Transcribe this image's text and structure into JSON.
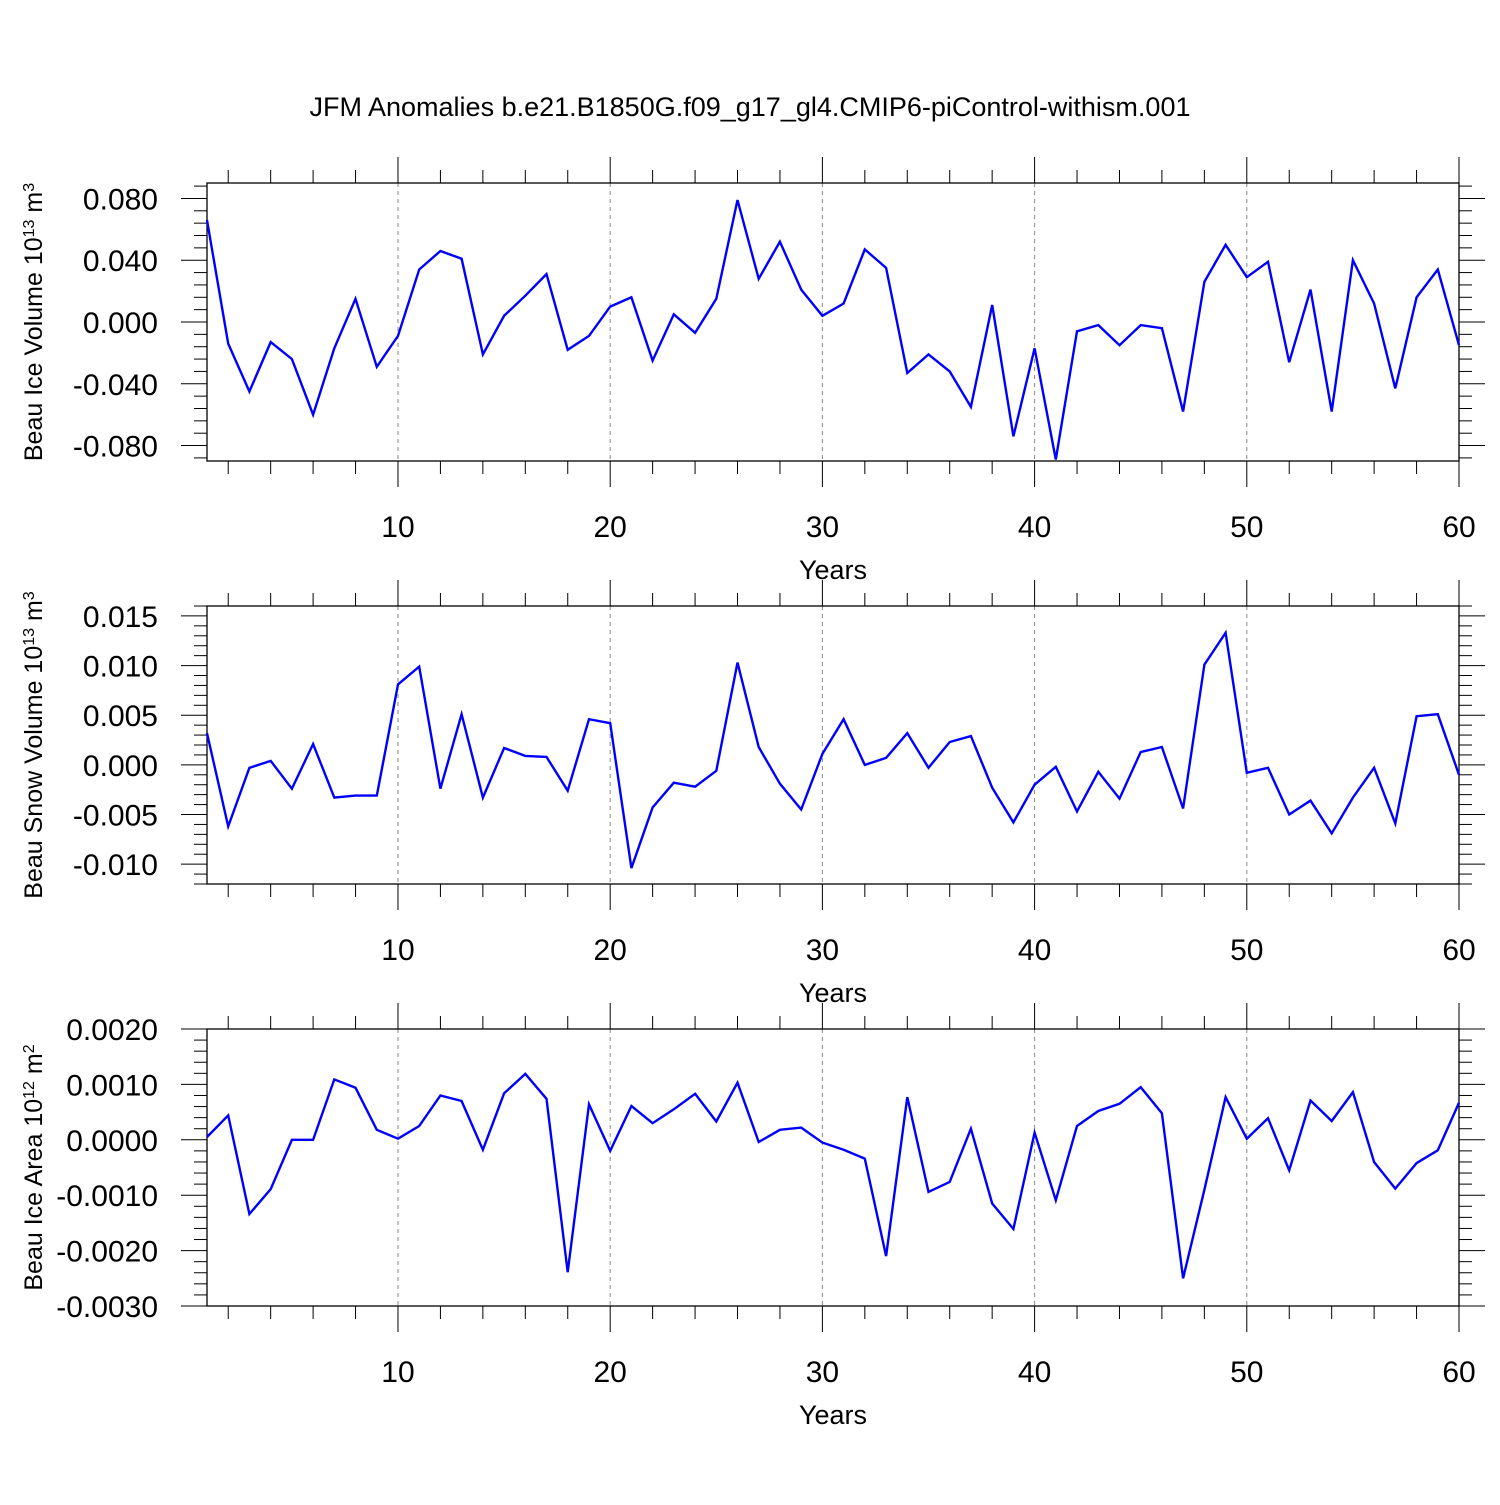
{
  "figure_title": "JFM Anomalies b.e21.B1850G.f09_g17_gl4.CMIP6-piControl-withism.001",
  "line_color": "#0000ff",
  "chart_data": [
    {
      "type": "line",
      "ylabel": "Beau Ice Volume 10",
      "ylabel_exp": "13",
      "ylabel_unit": " m",
      "ylabel_unit_exp": "3",
      "xlabel": "Years",
      "xlim": [
        1,
        60
      ],
      "ylim": [
        -0.09,
        0.09
      ],
      "xticks": [
        10,
        20,
        30,
        40,
        50,
        60
      ],
      "yticks": [
        0.08,
        0.04,
        0.0,
        -0.04,
        -0.08
      ],
      "ytick_labels": [
        "0.080",
        "0.040",
        "0.000",
        "-0.040",
        "-0.080"
      ],
      "series": [
        {
          "values": [
            0.066,
            -0.014,
            -0.045,
            -0.013,
            -0.024,
            -0.06,
            -0.017,
            0.015,
            -0.029,
            -0.009,
            0.034,
            0.046,
            0.041,
            -0.021,
            0.004,
            0.017,
            0.031,
            -0.018,
            -0.009,
            0.01,
            0.016,
            -0.025,
            0.005,
            -0.007,
            0.015,
            0.079,
            0.028,
            0.052,
            0.021,
            0.004,
            0.012,
            0.047,
            0.035,
            -0.033,
            -0.021,
            -0.032,
            -0.055,
            0.011,
            -0.074,
            -0.017,
            -0.089,
            -0.006,
            -0.002,
            -0.015,
            -0.002,
            -0.004,
            -0.058,
            0.026,
            0.05,
            0.029,
            0.039,
            -0.026,
            0.021,
            -0.058,
            0.04,
            0.012,
            -0.043,
            0.016,
            0.034,
            -0.015
          ]
        }
      ]
    },
    {
      "type": "line",
      "ylabel": "Beau Snow Volume 10",
      "ylabel_exp": "13",
      "ylabel_unit": " m",
      "ylabel_unit_exp": "3",
      "xlabel": "Years",
      "xlim": [
        1,
        60
      ],
      "ylim": [
        -0.012,
        0.016
      ],
      "xticks": [
        10,
        20,
        30,
        40,
        50,
        60
      ],
      "yticks": [
        0.015,
        0.01,
        0.005,
        0.0,
        -0.005,
        -0.01
      ],
      "ytick_labels": [
        "0.015",
        "0.010",
        "0.005",
        "0.000",
        "-0.005",
        "-0.010"
      ],
      "series": [
        {
          "values": [
            0.0032,
            -0.0062,
            -0.0003,
            0.0004,
            -0.0024,
            0.0021,
            -0.0033,
            -0.0031,
            -0.0031,
            0.0081,
            0.0099,
            -0.0024,
            0.0051,
            -0.0033,
            0.0017,
            0.0009,
            0.0008,
            -0.0026,
            0.0046,
            0.0042,
            -0.0104,
            -0.0043,
            -0.0018,
            -0.0022,
            -0.0006,
            0.0103,
            0.0018,
            -0.0019,
            -0.0045,
            0.0011,
            0.0046,
            0.0,
            0.0007,
            0.0032,
            -0.0003,
            0.0023,
            0.0029,
            -0.0023,
            -0.0058,
            -0.002,
            -0.0002,
            -0.0047,
            -0.0007,
            -0.0034,
            0.0013,
            0.0018,
            -0.0044,
            0.0101,
            0.0133,
            -0.0008,
            -0.0003,
            -0.005,
            -0.0036,
            -0.0069,
            -0.0033,
            -0.0003,
            -0.0059,
            0.0049,
            0.0051,
            -0.001
          ]
        }
      ]
    },
    {
      "type": "line",
      "ylabel": "Beau Ice Area 10",
      "ylabel_exp": "12",
      "ylabel_unit": " m",
      "ylabel_unit_exp": "2",
      "xlabel": "Years",
      "xlim": [
        1,
        60
      ],
      "ylim": [
        -0.003,
        0.002
      ],
      "xticks": [
        10,
        20,
        30,
        40,
        50,
        60
      ],
      "yticks": [
        0.002,
        0.001,
        0.0,
        -0.001,
        -0.002,
        -0.003
      ],
      "ytick_labels": [
        "0.0020",
        "0.0010",
        "0.0000",
        "-0.0010",
        "-0.0020",
        "-0.0030"
      ],
      "series": [
        {
          "values": [
            5e-05,
            0.00044,
            -0.00134,
            -0.00089,
            0.0,
            0.0,
            0.00109,
            0.00094,
            0.00018,
            2e-05,
            0.00025,
            0.0008,
            0.0007,
            -0.00018,
            0.00084,
            0.00119,
            0.00074,
            -0.00239,
            0.00064,
            -0.0002,
            0.00061,
            0.0003,
            0.00055,
            0.00083,
            0.00033,
            0.00103,
            -4e-05,
            0.00018,
            0.00022,
            -5e-05,
            -0.00018,
            -0.00034,
            -0.0021,
            0.00077,
            -0.00094,
            -0.00076,
            0.0002,
            -0.00115,
            -0.00161,
            0.00013,
            -0.00109,
            0.00025,
            0.00052,
            0.00065,
            0.00095,
            0.00048,
            -0.0025,
            -0.0009,
            0.00077,
            2e-05,
            0.00039,
            -0.00055,
            0.00071,
            0.00034,
            0.00086,
            -0.0004,
            -0.00088,
            -0.00042,
            -0.00019,
            0.00067
          ]
        }
      ]
    }
  ]
}
